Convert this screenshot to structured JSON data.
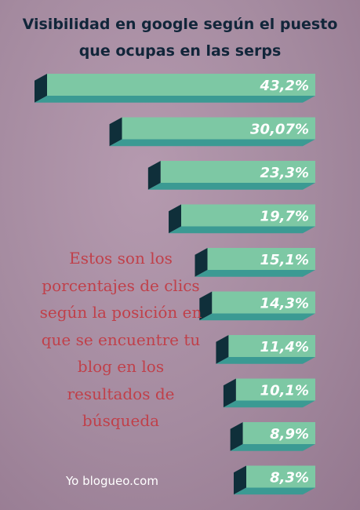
{
  "header": {
    "title_line1": "Visibilidad en google según el puesto",
    "title_line2": "que ocupas en las serps"
  },
  "chart_data": {
    "type": "bar",
    "orientation": "horizontal",
    "values": [
      43.2,
      30.07,
      23.3,
      19.7,
      15.1,
      14.3,
      11.4,
      10.1,
      8.9,
      8.3
    ],
    "labels": [
      "43,2%",
      "30,07%",
      "23,3%",
      "19,7%",
      "15,1%",
      "14,3%",
      "11,4%",
      "10,1%",
      "8,9%",
      "8,3%"
    ],
    "colors": {
      "front": "#7dc8a4",
      "bottom": "#3b9a93",
      "side": "#0f2f3a",
      "label": "#ffffff"
    }
  },
  "note": {
    "lines": [
      "Estos son los",
      "porcentajes de clics",
      "según la posición en",
      "que se encuentre tu",
      "blog en los",
      "resultados de",
      "búsqueda"
    ]
  },
  "footer": {
    "brand": "Yo blogueo.com"
  }
}
